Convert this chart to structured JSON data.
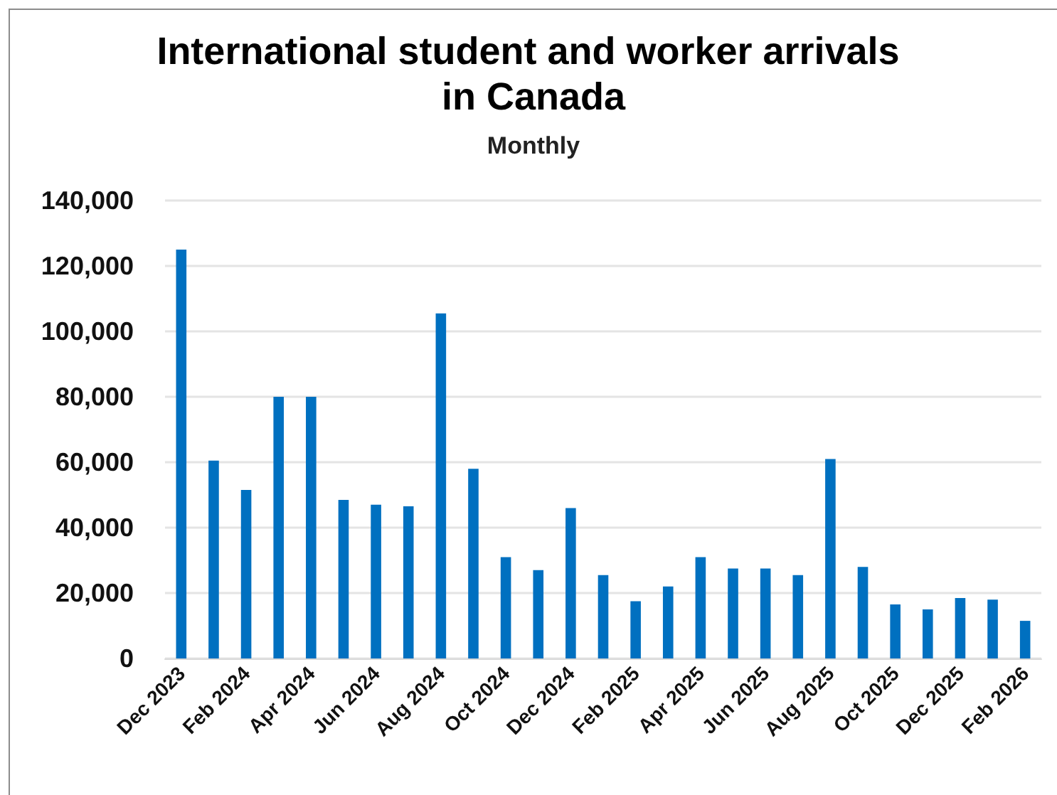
{
  "chart_data": {
    "type": "bar",
    "title": "International student and worker arrivals in Canada",
    "subtitle": "Monthly",
    "categories": [
      "Dec 2023",
      null,
      "Feb 2024",
      null,
      "Apr 2024",
      null,
      "Jun 2024",
      null,
      "Aug 2024",
      null,
      "Oct 2024",
      null,
      "Dec 2024",
      null,
      "Feb 2025",
      null,
      "Apr 2025",
      null,
      "Jun 2025",
      null,
      "Aug 2025",
      null,
      "Oct 2025",
      null,
      "Dec 2025",
      null,
      "Feb 2026"
    ],
    "values": [
      125000,
      60500,
      51500,
      80000,
      80000,
      48500,
      47000,
      46500,
      105500,
      58000,
      31000,
      27000,
      46000,
      25500,
      17500,
      22000,
      31000,
      27500,
      27500,
      25500,
      61000,
      28000,
      16500,
      15000,
      18500,
      18000,
      11500
    ],
    "color": "#0070c0",
    "ylim": [
      0,
      140000
    ],
    "yticks": [
      {
        "value": 0,
        "label": "0"
      },
      {
        "value": 20000,
        "label": "20,000"
      },
      {
        "value": 40000,
        "label": "40,000"
      },
      {
        "value": 60000,
        "label": "60,000"
      },
      {
        "value": 80000,
        "label": "80,000"
      },
      {
        "value": 100000,
        "label": "100,000"
      },
      {
        "value": 120000,
        "label": "120,000"
      },
      {
        "value": 140000,
        "label": "140,000"
      }
    ],
    "grid": "y"
  }
}
